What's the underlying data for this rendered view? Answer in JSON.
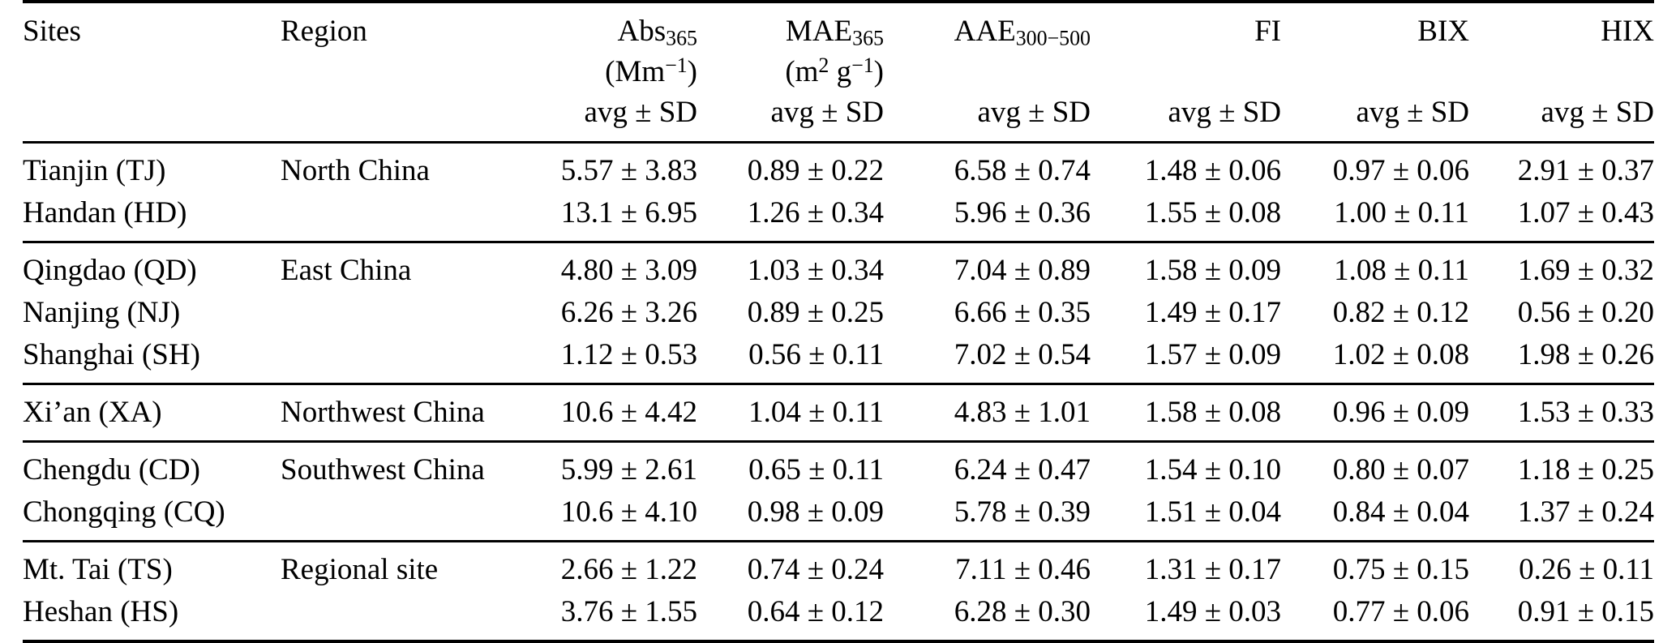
{
  "page": {
    "background": "#ffffff",
    "text_color": "#000000"
  },
  "table": {
    "header": {
      "columns": [
        {
          "id": "sites",
          "name_parts": [
            [
              "t",
              "Sites"
            ]
          ],
          "unit_parts": [],
          "stat": ""
        },
        {
          "id": "region",
          "name_parts": [
            [
              "t",
              "Region"
            ]
          ],
          "unit_parts": [],
          "stat": ""
        },
        {
          "id": "abs365",
          "name_parts": [
            [
              "t",
              "Abs"
            ],
            [
              "sub",
              "365"
            ]
          ],
          "unit_parts": [
            [
              "t",
              "(Mm"
            ],
            [
              "sup",
              "−1"
            ],
            [
              "t",
              ")"
            ]
          ],
          "stat": "avg ± SD"
        },
        {
          "id": "mae365",
          "name_parts": [
            [
              "t",
              "MAE"
            ],
            [
              "sub",
              "365"
            ]
          ],
          "unit_parts": [
            [
              "t",
              "(m"
            ],
            [
              "sup",
              "2"
            ],
            [
              "t",
              " g"
            ],
            [
              "sup",
              "−1"
            ],
            [
              "t",
              ")"
            ]
          ],
          "stat": "avg ± SD"
        },
        {
          "id": "aae300-500",
          "name_parts": [
            [
              "t",
              "AAE"
            ],
            [
              "sub",
              "300−500"
            ]
          ],
          "unit_parts": [],
          "stat": "avg ± SD"
        },
        {
          "id": "fi",
          "name_parts": [
            [
              "t",
              "FI"
            ]
          ],
          "unit_parts": [],
          "stat": "avg ± SD"
        },
        {
          "id": "bix",
          "name_parts": [
            [
              "t",
              "BIX"
            ]
          ],
          "unit_parts": [],
          "stat": "avg ± SD"
        },
        {
          "id": "hix",
          "name_parts": [
            [
              "t",
              "HIX"
            ]
          ],
          "unit_parts": [],
          "stat": "avg ± SD"
        }
      ]
    },
    "groups": [
      {
        "region": "North China",
        "rows": [
          {
            "site": "Tianjin (TJ)",
            "values": [
              "5.57 ± 3.83",
              "0.89 ± 0.22",
              "6.58 ± 0.74",
              "1.48 ± 0.06",
              "0.97 ± 0.06",
              "2.91 ± 0.37"
            ]
          },
          {
            "site": "Handan (HD)",
            "values": [
              "13.1 ± 6.95",
              "1.26 ± 0.34",
              "5.96 ± 0.36",
              "1.55 ± 0.08",
              "1.00 ± 0.11",
              "1.07 ± 0.43"
            ]
          }
        ]
      },
      {
        "region": "East China",
        "rows": [
          {
            "site": "Qingdao (QD)",
            "values": [
              "4.80 ± 3.09",
              "1.03 ± 0.34",
              "7.04 ± 0.89",
              "1.58 ± 0.09",
              "1.08 ± 0.11",
              "1.69 ± 0.32"
            ]
          },
          {
            "site": "Nanjing (NJ)",
            "values": [
              "6.26 ± 3.26",
              "0.89 ± 0.25",
              "6.66 ± 0.35",
              "1.49 ± 0.17",
              "0.82 ± 0.12",
              "0.56 ± 0.20"
            ]
          },
          {
            "site": "Shanghai (SH)",
            "values": [
              "1.12 ± 0.53",
              "0.56 ± 0.11",
              "7.02 ± 0.54",
              "1.57 ± 0.09",
              "1.02 ± 0.08",
              "1.98 ± 0.26"
            ]
          }
        ]
      },
      {
        "region": "Northwest China",
        "rows": [
          {
            "site": "Xi’an (XA)",
            "values": [
              "10.6 ± 4.42",
              "1.04 ± 0.11",
              "4.83 ± 1.01",
              "1.58 ± 0.08",
              "0.96 ± 0.09",
              "1.53 ± 0.33"
            ]
          }
        ]
      },
      {
        "region": "Southwest China",
        "rows": [
          {
            "site": "Chengdu (CD)",
            "values": [
              "5.99 ± 2.61",
              "0.65 ± 0.11",
              "6.24 ± 0.47",
              "1.54 ± 0.10",
              "0.80 ± 0.07",
              "1.18 ± 0.25"
            ]
          },
          {
            "site": "Chongqing (CQ)",
            "values": [
              "10.6 ± 4.10",
              "0.98 ± 0.09",
              "5.78 ± 0.39",
              "1.51 ± 0.04",
              "0.84 ± 0.04",
              "1.37 ± 0.24"
            ]
          }
        ]
      },
      {
        "region": "Regional site",
        "rows": [
          {
            "site": "Mt. Tai (TS)",
            "values": [
              "2.66 ± 1.22",
              "0.74 ± 0.24",
              "7.11 ± 0.46",
              "1.31 ± 0.17",
              "0.75 ± 0.15",
              "0.26 ± 0.11"
            ]
          },
          {
            "site": "Heshan (HS)",
            "values": [
              "3.76 ± 1.55",
              "0.64 ± 0.12",
              "6.28 ± 0.30",
              "1.49 ± 0.03",
              "0.77 ± 0.06",
              "0.91 ± 0.15"
            ]
          }
        ]
      }
    ]
  }
}
